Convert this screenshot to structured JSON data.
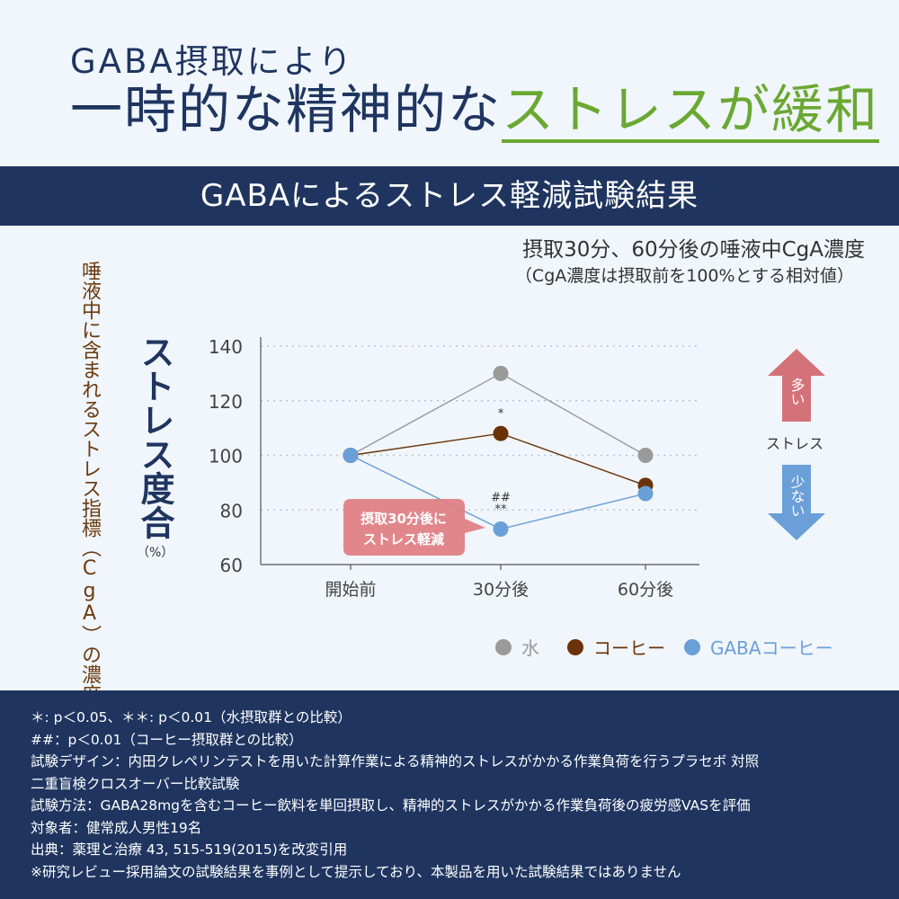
{
  "headline": {
    "line1": "GABA摂取により",
    "line2_main": "一時的な精神的な",
    "line2_accent": "ストレスが緩和"
  },
  "section_title": "GABAによるストレス軽減試験結果",
  "colors": {
    "navy": "#1f3560",
    "accent_green": "#6aa832",
    "water": "#9a9a9a",
    "coffee": "#6b3208",
    "gaba_coffee": "#6a9fd8",
    "up_arrow": "#d4727a",
    "down_arrow": "#6a9fd8",
    "callout": "#e07d82"
  },
  "chart_data": {
    "type": "line",
    "title": "摂取30分、60分後の唾液中CgA濃度",
    "subtitle": "（CgA濃度は摂取前を100%とする相対値）",
    "side_label": "唾液中に含まれるストレス指標（CgA）の濃度",
    "ylabel": "ストレス度合",
    "yunit": "（%）",
    "categories": [
      "開始前",
      "30分後",
      "60分後"
    ],
    "ylim": [
      60,
      140
    ],
    "yticks": [
      60,
      80,
      100,
      120,
      140
    ],
    "grid": "dotted",
    "series": [
      {
        "name": "水",
        "color": "#9a9a9a",
        "values": [
          100,
          130,
          100
        ]
      },
      {
        "name": "コーヒー",
        "color": "#6b3208",
        "values": [
          100,
          108,
          89
        ]
      },
      {
        "name": "GABAコーヒー",
        "color": "#6a9fd8",
        "values": [
          100,
          73,
          86
        ]
      }
    ],
    "annotations": [
      {
        "text": "*",
        "series": "コーヒー",
        "category": "30分後"
      },
      {
        "text": "##",
        "series": "GABAコーヒー",
        "category": "30分後"
      },
      {
        "text": "**",
        "series": "GABAコーヒー",
        "category": "30分後"
      }
    ],
    "callout": {
      "line1": "摂取30分後に",
      "line2": "ストレス軽減"
    },
    "legend_position": "bottom-right",
    "stress_indicator": {
      "up": "多い",
      "middle": "ストレス",
      "down": "少ない"
    }
  },
  "footer_notes": [
    "＊: p＜0.05、＊＊: p＜0.01（水摂取群との比較）",
    "##：p＜0.01（コーヒー摂取群との比較）",
    "試験デザイン：内田クレペリンテストを用いた計算作業による精神的ストレスがかかる作業負荷を行うプラセボ 対照",
    "二重盲検クロスオーバー比較試験",
    "試験方法：GABA28mgを含むコーヒー飲料を単回摂取し、精神的ストレスがかかる作業負荷後の疲労感VASを評価",
    "対象者：健常成人男性19名",
    "出典：薬理と治療 43, 515-519(2015)を改変引用",
    "※研究レビュー採用論文の試験結果を事例として提示しており、本製品を用いた試験結果ではありません"
  ]
}
